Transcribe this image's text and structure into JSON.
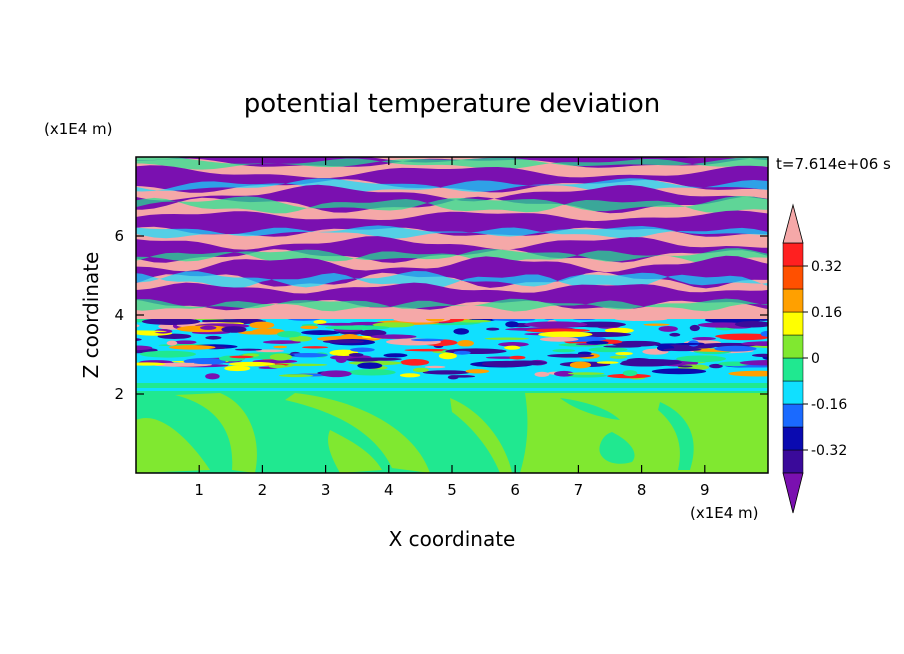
{
  "chart_data": {
    "type": "heatmap",
    "title": "potential temperature deviation",
    "xlabel": "X coordinate",
    "ylabel": "Z coordinate",
    "x_unit": "(x1E4 m)",
    "y_unit": "(x1E4 m)",
    "time_label": "t=7.614e+06 s",
    "xlim": [
      0,
      10
    ],
    "ylim": [
      0,
      8
    ],
    "x_ticks": [
      1,
      2,
      3,
      4,
      5,
      6,
      7,
      8,
      9
    ],
    "y_ticks": [
      2,
      4,
      6
    ],
    "colorbar": {
      "levels": [
        -0.4,
        -0.32,
        -0.24,
        -0.16,
        -0.08,
        0,
        0.08,
        0.16,
        0.24,
        0.32,
        0.4
      ],
      "labels": [
        "0.32",
        "0.16",
        "0",
        "-0.16",
        "-0.32"
      ],
      "label_values": [
        0.32,
        0.16,
        0,
        -0.16,
        -0.32
      ],
      "colors": [
        "#7a10b0",
        "#3a0a9a",
        "#0a0ab0",
        "#1a6aff",
        "#10e0ff",
        "#20e890",
        "#80e830",
        "#ffff00",
        "#ffa000",
        "#ff5000",
        "#ff2020",
        "#f5a8a8"
      ],
      "over_color": "#f5a8a8",
      "under_color": "#7a10b0"
    },
    "field_summary": {
      "upper_layer_z": [
        4.0,
        8.0
      ],
      "upper_layer_description": "alternating horizontal bands of +0.4 and -0.4",
      "mixing_zone_z": [
        2.2,
        4.0
      ],
      "lower_layer_z": [
        0.0,
        2.2
      ],
      "lower_layer_values": [
        0.0,
        0.08
      ]
    }
  },
  "colors": {
    "pink": "#f5a8a8",
    "purple": "#7a10b0",
    "lower_green": "#20e890",
    "lower_lime": "#80e830",
    "cyan_band": "#10e0ff"
  }
}
